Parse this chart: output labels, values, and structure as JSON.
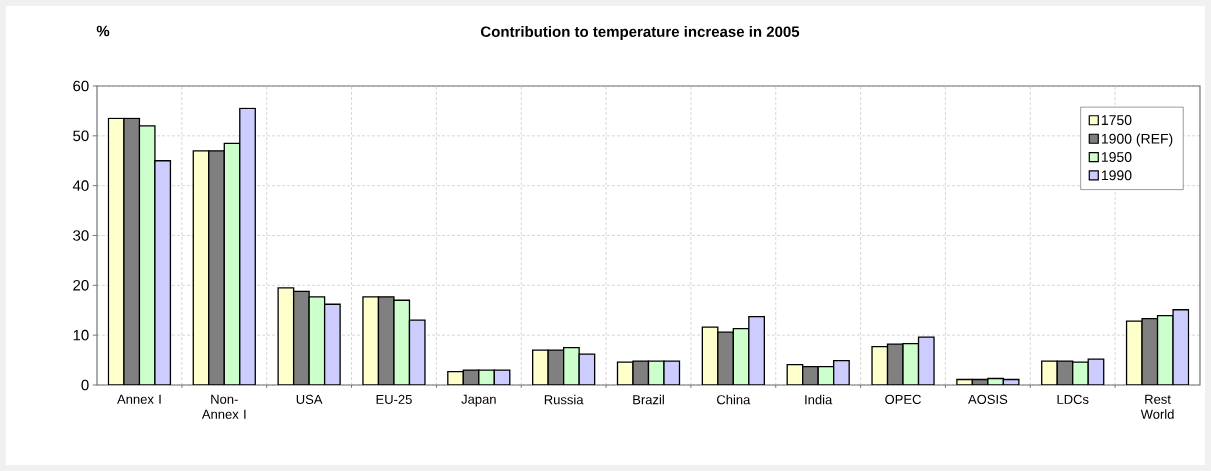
{
  "chart_data": {
    "type": "bar",
    "title": "Contribution to temperature increase in 2005",
    "ylabel": "%",
    "categories": [
      "Annex I",
      "Non-Annex I",
      "USA",
      "EU-25",
      "Japan",
      "Russia",
      "Brazil",
      "China",
      "India",
      "OPEC",
      "AOSIS",
      "LDCs",
      "Rest World"
    ],
    "series": [
      {
        "name": "1750",
        "color": "#ffffcc",
        "values": [
          53.5,
          47,
          19.5,
          17.7,
          2.7,
          7,
          4.6,
          11.6,
          4.1,
          7.7,
          1.1,
          4.8,
          12.8
        ]
      },
      {
        "name": "1900 (REF)",
        "color": "#808080",
        "values": [
          53.5,
          47,
          18.8,
          17.7,
          3,
          7,
          4.8,
          10.6,
          3.7,
          8.2,
          1.1,
          4.8,
          13.3
        ]
      },
      {
        "name": "1950",
        "color": "#ccffcc",
        "values": [
          52,
          48.5,
          17.7,
          17,
          3,
          7.5,
          4.8,
          11.3,
          3.7,
          8.3,
          1.3,
          4.6,
          13.9
        ]
      },
      {
        "name": "1990",
        "color": "#ccccff",
        "values": [
          45,
          55.5,
          16.2,
          13,
          3,
          6.2,
          4.8,
          13.7,
          4.9,
          9.6,
          1.1,
          5.2,
          15.1
        ]
      }
    ],
    "ylim": [
      0,
      60
    ],
    "yticks": [
      0,
      10,
      20,
      30,
      40,
      50,
      60
    ],
    "grid": true,
    "legend": "top right"
  }
}
